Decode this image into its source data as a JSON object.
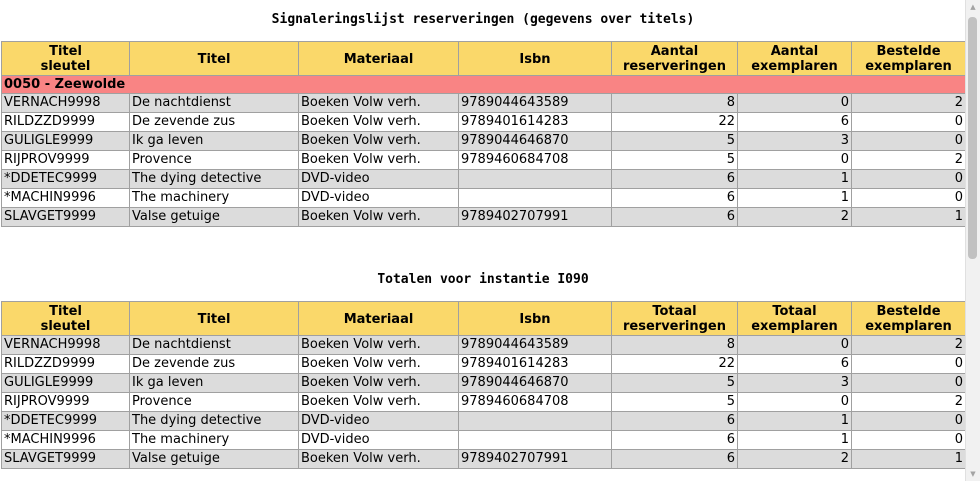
{
  "report": {
    "title": "Signaleringslijst reserveringen (gegevens over titels)",
    "headers": [
      [
        "Titel",
        "sleutel"
      ],
      [
        "Titel"
      ],
      [
        "Materiaal"
      ],
      [
        "Isbn"
      ],
      [
        "Aantal",
        "reserveringen"
      ],
      [
        "Aantal",
        "exemplaren"
      ],
      [
        "Bestelde",
        "exemplaren"
      ]
    ],
    "group": "0050 - Zeewolde",
    "rows": [
      {
        "key": "VERNACH9998",
        "title": "De nachtdienst",
        "material": "Boeken Volw verh.",
        "isbn": "9789044643589",
        "reservations": "8",
        "copies": "0",
        "ordered": "2"
      },
      {
        "key": "RILDZZD9999",
        "title": "De zevende zus",
        "material": "Boeken Volw verh.",
        "isbn": "9789401614283",
        "reservations": "22",
        "copies": "6",
        "ordered": "0"
      },
      {
        "key": "GULIGLE9999",
        "title": "Ik ga leven",
        "material": "Boeken Volw verh.",
        "isbn": "9789044646870",
        "reservations": "5",
        "copies": "3",
        "ordered": "0"
      },
      {
        "key": "RIJPROV9999",
        "title": "Provence",
        "material": "Boeken Volw verh.",
        "isbn": "9789460684708",
        "reservations": "5",
        "copies": "0",
        "ordered": "2"
      },
      {
        "key": "*DDETEC9999",
        "title": "The dying detective",
        "material": "DVD-video",
        "isbn": "",
        "reservations": "6",
        "copies": "1",
        "ordered": "0"
      },
      {
        "key": "*MACHIN9996",
        "title": "The machinery",
        "material": "DVD-video",
        "isbn": "",
        "reservations": "6",
        "copies": "1",
        "ordered": "0"
      },
      {
        "key": "SLAVGET9999",
        "title": "Valse getuige",
        "material": "Boeken Volw verh.",
        "isbn": "9789402707991",
        "reservations": "6",
        "copies": "2",
        "ordered": "1"
      }
    ]
  },
  "totals": {
    "title": "Totalen voor instantie I090",
    "headers": [
      [
        "Titel",
        "sleutel"
      ],
      [
        "Titel"
      ],
      [
        "Materiaal"
      ],
      [
        "Isbn"
      ],
      [
        "Totaal",
        "reserveringen"
      ],
      [
        "Totaal",
        "exemplaren"
      ],
      [
        "Bestelde",
        "exemplaren"
      ]
    ],
    "rows": [
      {
        "key": "VERNACH9998",
        "title": "De nachtdienst",
        "material": "Boeken Volw verh.",
        "isbn": "9789044643589",
        "reservations": "8",
        "copies": "0",
        "ordered": "2"
      },
      {
        "key": "RILDZZD9999",
        "title": "De zevende zus",
        "material": "Boeken Volw verh.",
        "isbn": "9789401614283",
        "reservations": "22",
        "copies": "6",
        "ordered": "0"
      },
      {
        "key": "GULIGLE9999",
        "title": "Ik ga leven",
        "material": "Boeken Volw verh.",
        "isbn": "9789044646870",
        "reservations": "5",
        "copies": "3",
        "ordered": "0"
      },
      {
        "key": "RIJPROV9999",
        "title": "Provence",
        "material": "Boeken Volw verh.",
        "isbn": "9789460684708",
        "reservations": "5",
        "copies": "0",
        "ordered": "2"
      },
      {
        "key": "*DDETEC9999",
        "title": "The dying detective",
        "material": "DVD-video",
        "isbn": "",
        "reservations": "6",
        "copies": "1",
        "ordered": "0"
      },
      {
        "key": "*MACHIN9996",
        "title": "The machinery",
        "material": "DVD-video",
        "isbn": "",
        "reservations": "6",
        "copies": "1",
        "ordered": "0"
      },
      {
        "key": "SLAVGET9999",
        "title": "Valse getuige",
        "material": "Boeken Volw verh.",
        "isbn": "9789402707991",
        "reservations": "6",
        "copies": "2",
        "ordered": "1"
      }
    ]
  },
  "colors": {
    "header": "#fad86a",
    "group_row": "#f98484",
    "row_odd": "#dcdcdc",
    "row_even": "#ffffff"
  },
  "scrollbar": {
    "up_icon": "scroll-up-arrow-icon",
    "down_icon": "scroll-down-arrow-icon"
  }
}
